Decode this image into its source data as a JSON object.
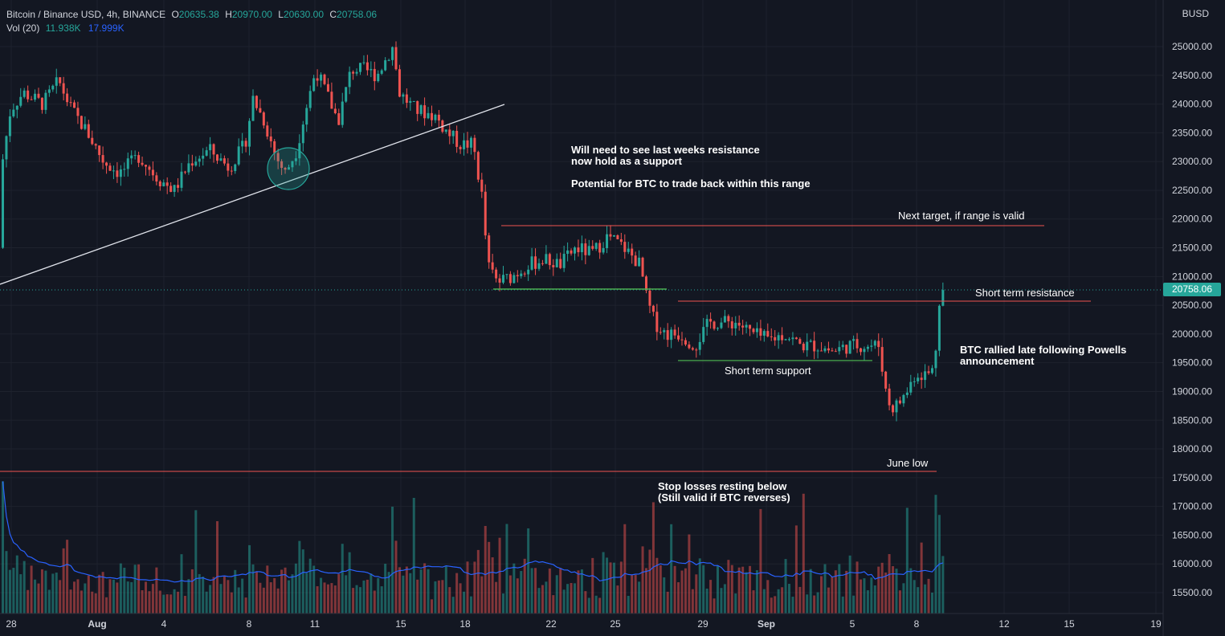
{
  "header": {
    "symbol": "Bitcoin / Binance USD, 4h, BINANCE",
    "open_label": "O",
    "open": "20635.38",
    "high_label": "H",
    "high": "20970.00",
    "low_label": "L",
    "low": "20630.00",
    "close_label": "C",
    "close": "20758.06",
    "vol_label": "Vol (20)",
    "vol": "11.938K",
    "vol_ma": "17.999K"
  },
  "currency": "BUSD",
  "last_price": "20758.06",
  "colors": {
    "bg": "#131722",
    "up": "#26a69a",
    "down": "#ef5350",
    "grid": "#1e222d",
    "ma": "#2962ff",
    "text": "#d1d4dc"
  },
  "chart_data": {
    "type": "candlestick",
    "y_ticks": [
      "25000.00",
      "24500.00",
      "24000.00",
      "23500.00",
      "23000.00",
      "22500.00",
      "22000.00",
      "21500.00",
      "21000.00",
      "20500.00",
      "20000.00",
      "19500.00",
      "19000.00",
      "18500.00",
      "18000.00",
      "17500.00",
      "17000.00",
      "16500.00",
      "16000.00",
      "15500.00"
    ],
    "ylim": [
      15300,
      25400
    ],
    "x_ticks": [
      {
        "label": "28",
        "bold": false
      },
      {
        "label": "Aug",
        "bold": true
      },
      {
        "label": "4",
        "bold": false
      },
      {
        "label": "8",
        "bold": false
      },
      {
        "label": "11",
        "bold": false
      },
      {
        "label": "15",
        "bold": false
      },
      {
        "label": "18",
        "bold": false
      },
      {
        "label": "22",
        "bold": false
      },
      {
        "label": "25",
        "bold": false
      },
      {
        "label": "29",
        "bold": false
      },
      {
        "label": "Sep",
        "bold": true
      },
      {
        "label": "5",
        "bold": false
      },
      {
        "label": "8",
        "bold": false
      },
      {
        "label": "12",
        "bold": false
      },
      {
        "label": "15",
        "bold": false
      },
      {
        "label": "19",
        "bold": false
      }
    ],
    "price_path": [
      [
        0,
        21500
      ],
      [
        6,
        23000
      ],
      [
        16,
        23900
      ],
      [
        32,
        24200
      ],
      [
        56,
        24000
      ],
      [
        76,
        24400
      ],
      [
        92,
        23900
      ],
      [
        112,
        23500
      ],
      [
        132,
        23000
      ],
      [
        152,
        22800
      ],
      [
        176,
        23100
      ],
      [
        200,
        22700
      ],
      [
        220,
        22500
      ],
      [
        240,
        23000
      ],
      [
        264,
        23200
      ],
      [
        288,
        22900
      ],
      [
        308,
        23300
      ],
      [
        318,
        24100
      ],
      [
        332,
        23700
      ],
      [
        346,
        23100
      ],
      [
        358,
        22800
      ],
      [
        372,
        23200
      ],
      [
        382,
        23800
      ],
      [
        396,
        24600
      ],
      [
        412,
        24100
      ],
      [
        424,
        23700
      ],
      [
        440,
        24600
      ],
      [
        456,
        24600
      ],
      [
        472,
        24500
      ],
      [
        480,
        24700
      ],
      [
        492,
        25000
      ],
      [
        500,
        24200
      ],
      [
        520,
        23900
      ],
      [
        544,
        23800
      ],
      [
        560,
        23500
      ],
      [
        576,
        23300
      ],
      [
        592,
        23300
      ],
      [
        604,
        22300
      ],
      [
        610,
        21200
      ],
      [
        622,
        20900
      ],
      [
        640,
        21000
      ],
      [
        660,
        21200
      ],
      [
        680,
        21300
      ],
      [
        700,
        21200
      ],
      [
        720,
        21500
      ],
      [
        740,
        21400
      ],
      [
        760,
        21700
      ],
      [
        780,
        21500
      ],
      [
        800,
        21200
      ],
      [
        808,
        20600
      ],
      [
        818,
        20200
      ],
      [
        832,
        20000
      ],
      [
        850,
        20000
      ],
      [
        868,
        19800
      ],
      [
        886,
        20200
      ],
      [
        904,
        20200
      ],
      [
        920,
        20200
      ],
      [
        940,
        20000
      ],
      [
        960,
        19900
      ],
      [
        980,
        20000
      ],
      [
        1000,
        19800
      ],
      [
        1020,
        19800
      ],
      [
        1040,
        19700
      ],
      [
        1060,
        19800
      ],
      [
        1080,
        19800
      ],
      [
        1098,
        19800
      ],
      [
        1104,
        19100
      ],
      [
        1112,
        18700
      ],
      [
        1122,
        18800
      ],
      [
        1132,
        19000
      ],
      [
        1142,
        19300
      ],
      [
        1158,
        19300
      ],
      [
        1166,
        19400
      ],
      [
        1172,
        20600
      ],
      [
        1176,
        20758
      ]
    ],
    "volume_scale": "relative"
  },
  "annotations": {
    "note1_line1": "Will need to see last weeks resistance",
    "note1_line2": "now hold as a support",
    "note2": "Potential for BTC to trade back within this range",
    "next_target": "Next target, if range is valid",
    "short_resistance": "Short term resistance",
    "short_support": "Short term support",
    "rally_line1": "BTC rallied late following Powells",
    "rally_line2": "announcement",
    "june_low": "June low",
    "stop_line1": "Stop losses resting below",
    "stop_line2": "(Still valid if BTC reverses)"
  }
}
